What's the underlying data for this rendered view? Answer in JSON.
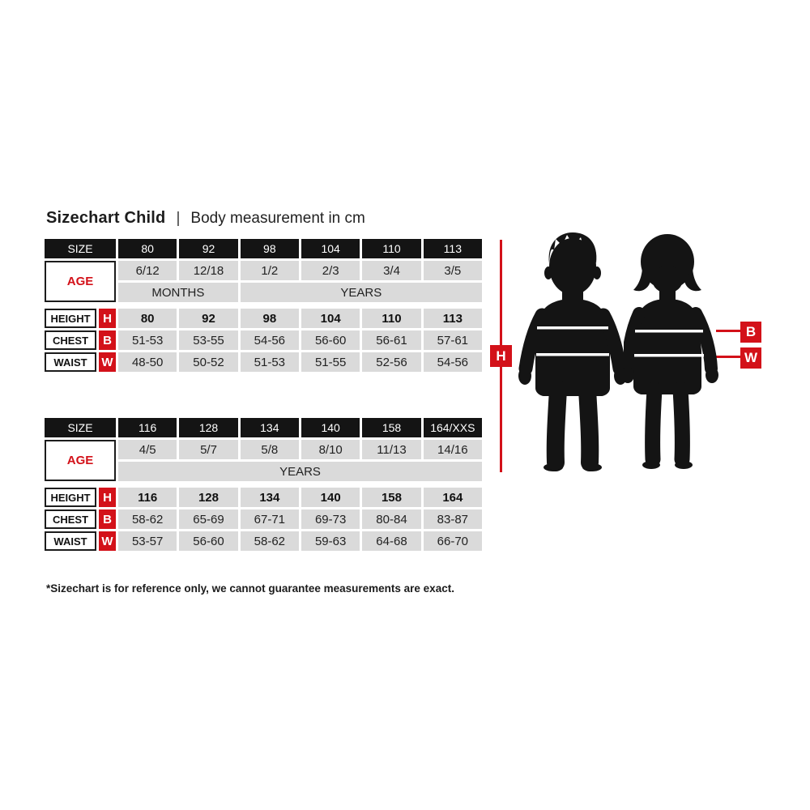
{
  "title": {
    "main": "Sizechart Child",
    "separator": "|",
    "subtitle": "Body measurement in cm"
  },
  "footnote": "*Sizechart is for reference only, we cannot guarantee measurements are exact.",
  "colors": {
    "red": "#d31119",
    "black_cell": "#141414",
    "gray_cell": "#dadada"
  },
  "labels": {
    "size": "SIZE",
    "age": "AGE",
    "height": "HEIGHT",
    "chest": "CHEST",
    "waist": "WAIST",
    "h_badge": "H",
    "b_badge": "B",
    "w_badge": "W"
  },
  "table1": {
    "sizes": [
      "80",
      "92",
      "98",
      "104",
      "110",
      "113"
    ],
    "ages": [
      "6/12",
      "12/18",
      "1/2",
      "2/3",
      "3/4",
      "3/5"
    ],
    "age_units": [
      {
        "label": "MONTHS",
        "span": 2
      },
      {
        "label": "YEARS",
        "span": 4
      }
    ],
    "height": [
      "80",
      "92",
      "98",
      "104",
      "110",
      "113"
    ],
    "chest": [
      "51-53",
      "53-55",
      "54-56",
      "56-60",
      "56-61",
      "57-61"
    ],
    "waist": [
      "48-50",
      "50-52",
      "51-53",
      "51-55",
      "52-56",
      "54-56"
    ]
  },
  "table2": {
    "sizes": [
      "116",
      "128",
      "134",
      "140",
      "158",
      "164/XXS"
    ],
    "ages": [
      "4/5",
      "5/7",
      "5/8",
      "8/10",
      "11/13",
      "14/16"
    ],
    "age_units": [
      {
        "label": "YEARS",
        "span": 6
      }
    ],
    "height": [
      "116",
      "128",
      "134",
      "140",
      "158",
      "164"
    ],
    "chest": [
      "58-62",
      "65-69",
      "67-71",
      "69-73",
      "80-84",
      "83-87"
    ],
    "waist": [
      "53-57",
      "56-60",
      "58-62",
      "59-63",
      "64-68",
      "66-70"
    ]
  },
  "figure": {
    "h_label": "H",
    "b_label": "B",
    "w_label": "W"
  }
}
